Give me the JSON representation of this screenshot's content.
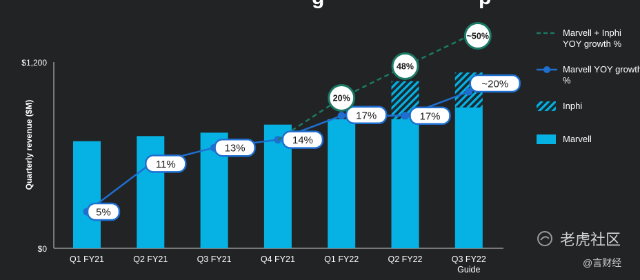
{
  "chart_data": {
    "type": "bar",
    "title": "",
    "ylabel": "Quarterly revenue ($M)",
    "xlabel": "",
    "ylim": [
      0,
      1200
    ],
    "yticks": [
      {
        "value": 0,
        "label": "$0"
      },
      {
        "value": 1200,
        "label": "$1,200"
      }
    ],
    "categories": [
      "Q1 FY21",
      "Q2 FY21",
      "Q3 FY21",
      "Q4 FY21",
      "Q1 FY22",
      "Q2 FY22",
      "Q3 FY22 Guide"
    ],
    "series": [
      {
        "name": "Marvell",
        "kind": "bar",
        "color": "#06b2e3",
        "values": [
          690,
          723,
          745,
          797,
          832,
          832,
          908
        ]
      },
      {
        "name": "Inphi",
        "kind": "bar-stacked-hatched",
        "color": "#06b2e3",
        "values": [
          0,
          0,
          0,
          0,
          0,
          245,
          225
        ]
      },
      {
        "name": "Marvell YOY growth %",
        "kind": "line",
        "color": "#1e6fd0",
        "labels": [
          "5%",
          "11%",
          "13%",
          "14%",
          "17%",
          "17%",
          "~20%"
        ]
      },
      {
        "name": "Marvell + Inphi YOY growth %",
        "kind": "dashed-line",
        "color": "#1a7a66",
        "labels": [
          "20%",
          "48%",
          "~50%"
        ]
      }
    ],
    "legend": [
      {
        "name": "Marvell + Inphi YOY growth %",
        "symbol": "dashed-line"
      },
      {
        "name": "Marvell YOY growth %",
        "symbol": "line-marker"
      },
      {
        "name": "Inphi",
        "symbol": "hatched-box"
      },
      {
        "name": "Marvell",
        "symbol": "solid-box"
      }
    ],
    "legend_position": "right",
    "grid": false
  },
  "watermark": {
    "logo_text": "老虎社区",
    "author": "@言财经"
  }
}
